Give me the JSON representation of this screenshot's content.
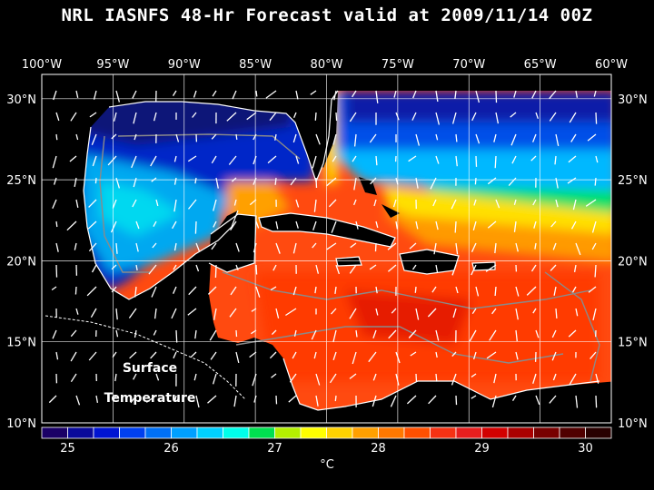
{
  "title": "NRL IASNFS  48-Hr Forecast valid at 2009/11/14 00Z",
  "map": {
    "lon_labels": [
      "100°W",
      "95°W",
      "90°W",
      "85°W",
      "80°W",
      "75°W",
      "70°W",
      "65°W",
      "60°W"
    ],
    "lat_labels": [
      "30°N",
      "25°N",
      "20°N",
      "15°N",
      "10°N"
    ],
    "lon_range": [
      -100,
      -60
    ],
    "lat_range": [
      10,
      31.5
    ],
    "grid": true,
    "field": "Sea surface temperature",
    "overlay": "surface current vectors"
  },
  "annotation": {
    "line1": "Surface",
    "line2": "Temperature"
  },
  "colorbar": {
    "ticks": [
      "25",
      "26",
      "27",
      "28",
      "29",
      "30"
    ],
    "unit": "°C",
    "colors": [
      "#1a0066",
      "#0a0a9a",
      "#0014d2",
      "#0040f0",
      "#0070f5",
      "#00a0ff",
      "#00d0ff",
      "#00ffea",
      "#00e050",
      "#b4f000",
      "#ffff00",
      "#ffd200",
      "#ffa000",
      "#ff7800",
      "#ff5000",
      "#f53214",
      "#e61e1e",
      "#d20000",
      "#aa0000",
      "#780000",
      "#500000",
      "#280000"
    ]
  }
}
